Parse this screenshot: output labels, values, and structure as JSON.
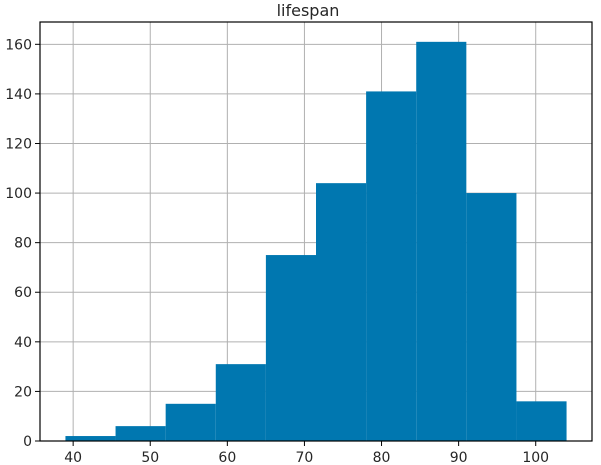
{
  "chart_data": {
    "type": "bar",
    "title": "lifespan",
    "xlabel": "",
    "ylabel": "",
    "bin_edges": [
      39,
      45.5,
      52,
      58.5,
      65,
      71.5,
      78,
      84.5,
      91,
      97.5,
      104
    ],
    "values": [
      2,
      6,
      15,
      31,
      75,
      104,
      141,
      161,
      100,
      16
    ],
    "xlim": [
      35.7,
      107.3
    ],
    "ylim": [
      0,
      169
    ],
    "x_ticks": [
      40,
      50,
      60,
      70,
      80,
      90,
      100
    ],
    "y_ticks": [
      0,
      20,
      40,
      60,
      80,
      100,
      120,
      140,
      160
    ],
    "grid": true,
    "colors": {
      "bar": "#0077b0",
      "grid": "#b0b0b0",
      "frame": "#000000"
    }
  }
}
